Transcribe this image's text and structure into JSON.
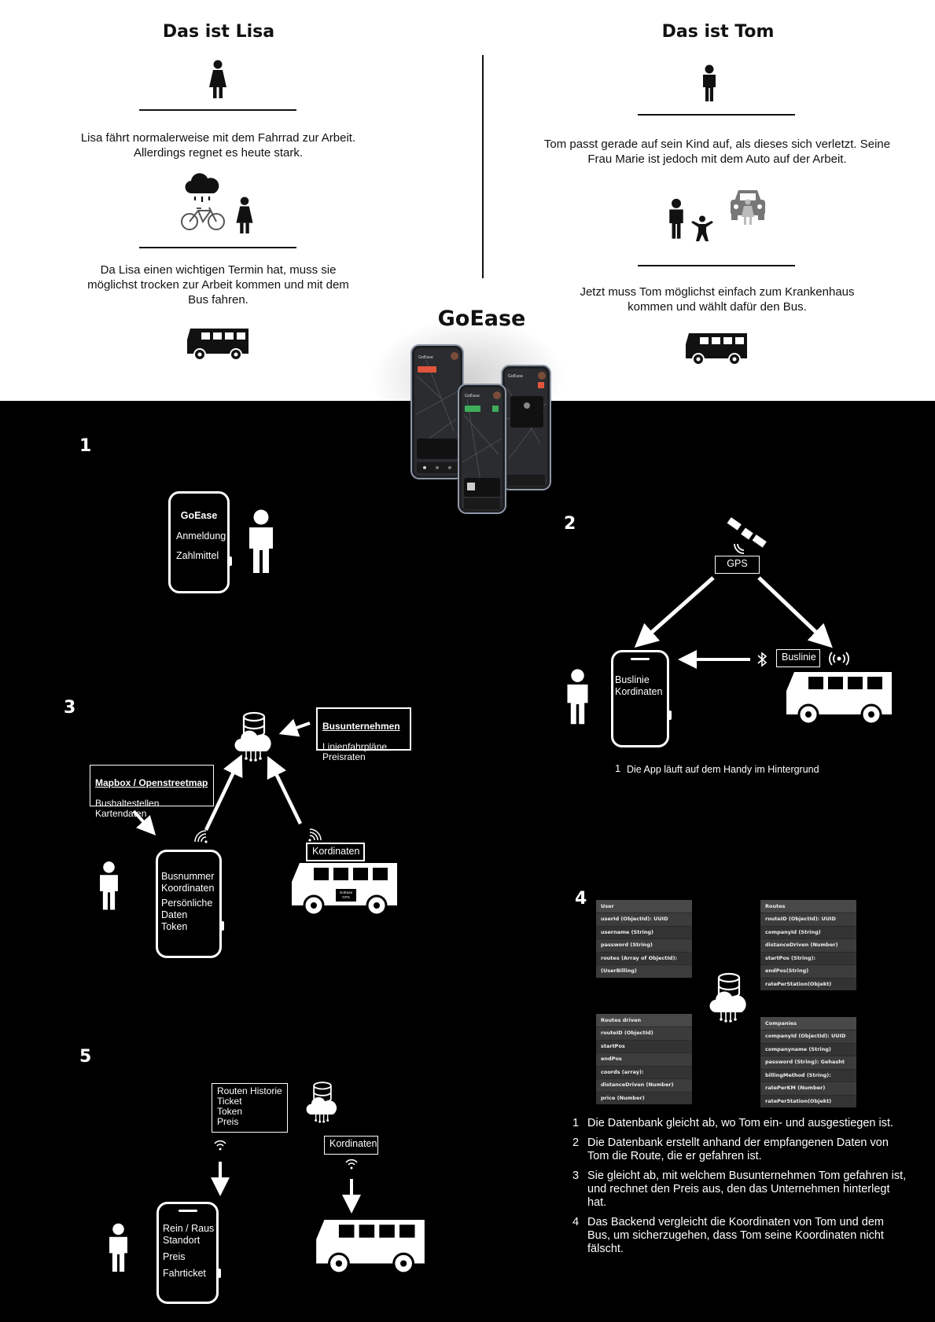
{
  "lisa": {
    "title": "Das ist Lisa",
    "text1": "Lisa fährt normalerweise mit dem Fahrrad zur Arbeit.\nAllerdings regnet es heute stark.",
    "text2": "Da Lisa einen wichtigen Termin hat, muss sie\nmöglichst trocken zur Arbeit kommen und mit dem\nBus fahren."
  },
  "tom": {
    "title": "Das ist Tom",
    "text1": "Tom passt gerade auf sein Kind auf, als dieses sich verletzt. Seine\nFrau Marie ist jedoch mit dem Auto auf der Arbeit.",
    "text2": "Jetzt muss Tom möglichst einfach zum Krankenhaus\nkommen und wählt dafür den Bus."
  },
  "app_title": "GoEase",
  "mockup": {
    "brand": "GoEase"
  },
  "step1": {
    "number": "1",
    "phone_title": "GoEase",
    "items": [
      "Anmeldung",
      "Zahlmittel"
    ]
  },
  "step2": {
    "number": "2",
    "gps_label": "GPS",
    "bus_label": "Buslinie",
    "phone_text": "Buslinie\nKordinaten",
    "footnote_num": "1",
    "footnote": "Die App läuft auf dem Handy im Hintergrund"
  },
  "step3": {
    "number": "3",
    "bus_company": {
      "title": "Busunternehmen",
      "lines": "Linienfahrpläne\nPreisraten"
    },
    "mapbox": {
      "title": "Mapbox / Openstreetmap",
      "lines": "Bushaltestellen\nKartendaten"
    },
    "phone_text1": "Busnummer\nKoordinaten",
    "phone_text2": "Persönliche\nDaten\nToken",
    "coords_label": "Kordinaten",
    "bus_badge": "GoEase\nGPS"
  },
  "step4": {
    "number": "4",
    "tables": {
      "user": {
        "title": "User",
        "rows": [
          "userId (ObjectId): UUID",
          "username (String)",
          "password (String)",
          "routes (Array of ObjectId):",
          "(UserBilling)"
        ]
      },
      "routes": {
        "title": "Routes",
        "rows": [
          "routeID (ObjectId): UUID",
          "companyId (String)",
          "distanceDriven (Number)",
          "startPos (String):",
          "endPos(String)",
          "ratePerStation(Objekt)"
        ]
      },
      "routes_driven": {
        "title": "Routes driven",
        "rows": [
          "routeID (ObjectId)",
          "startPos",
          "endPos",
          "coords (array):",
          "distanceDriven (Number)",
          "price (Number)"
        ]
      },
      "companies": {
        "title": "Companies",
        "rows": [
          "companyId (ObjectId): UUID",
          "companyname (String)",
          "password (String): Gehasht",
          "billingMethod (String):",
          "ratePerKM (Number)",
          "ratePerStation(Objekt)"
        ]
      }
    },
    "notes": [
      {
        "n": "1",
        "text": "Die Datenbank gleicht ab, wo Tom ein- und ausgestiegen ist."
      },
      {
        "n": "2",
        "text": "Die Datenbank erstellt anhand der empfangenen Daten von Tom die Route, die er gefahren ist."
      },
      {
        "n": "3",
        "text": "Sie gleicht ab, mit welchem Busunternehmen Tom gefahren ist, und rechnet den Preis aus, den das Unternehmen hinterlegt hat."
      },
      {
        "n": "4",
        "text": "Das Backend vergleicht die Koordinaten von Tom und dem Bus, um sicherzugehen, dass Tom seine Koordinaten nicht fälscht."
      }
    ]
  },
  "step5": {
    "number": "5",
    "box_text": "Routen Historie\nTicket\nToken\nPreis",
    "coords_label": "Kordinaten",
    "phone_text1": "Rein / Raus\nStandort",
    "phone_text2": "Preis",
    "phone_text3": "Fahrticket"
  }
}
